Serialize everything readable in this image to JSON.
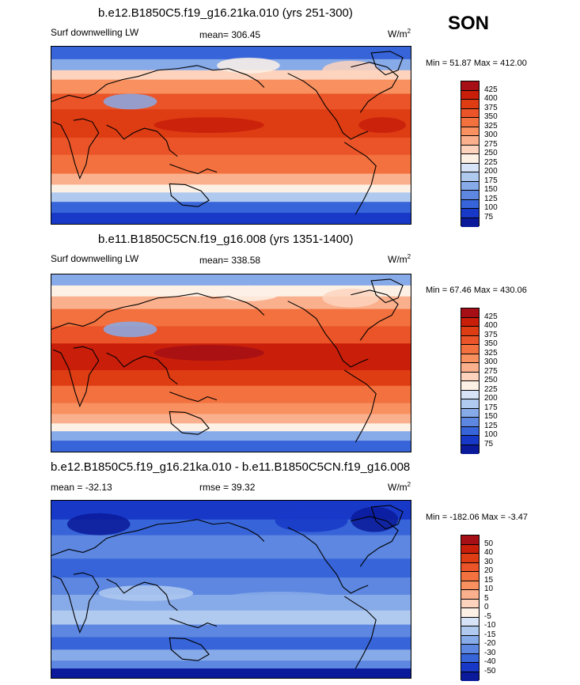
{
  "season": "SON",
  "panels": [
    {
      "title": "b.e12.B1850C5.f19_g16.21ka.010 (yrs 251-300)",
      "left_label": "Surf downwelling LW",
      "mean_label": "mean= 306.45",
      "rmse_label": "",
      "units": "W/m",
      "units_sup": "2",
      "minmax": "Min =  51.87 Max = 412.00",
      "levels": [
        "425",
        "400",
        "375",
        "350",
        "325",
        "300",
        "275",
        "250",
        "225",
        "200",
        "175",
        "150",
        "125",
        "100",
        "75"
      ],
      "colors": [
        "#a50f15",
        "#c81e0a",
        "#de3c13",
        "#ea5428",
        "#f2713f",
        "#f89060",
        "#fbb08d",
        "#fdd3bd",
        "#fdf1e6",
        "#d7e4f7",
        "#afc9ef",
        "#87aae8",
        "#5d87e0",
        "#3764d8",
        "#1838c8",
        "#0a1a9a"
      ],
      "pattern": "control"
    },
    {
      "title": "b.e11.B1850C5CN.f19_g16.008 (yrs 1351-1400)",
      "left_label": "Surf downwelling LW",
      "mean_label": "mean= 338.58",
      "rmse_label": "",
      "units": "W/m",
      "units_sup": "2",
      "minmax": "Min =  67.46 Max = 430.06",
      "levels": [
        "425",
        "400",
        "375",
        "350",
        "325",
        "300",
        "275",
        "250",
        "225",
        "200",
        "175",
        "150",
        "125",
        "100",
        "75"
      ],
      "colors": [
        "#a50f15",
        "#c81e0a",
        "#de3c13",
        "#ea5428",
        "#f2713f",
        "#f89060",
        "#fbb08d",
        "#fdd3bd",
        "#fdf1e6",
        "#d7e4f7",
        "#afc9ef",
        "#87aae8",
        "#5d87e0",
        "#3764d8",
        "#1838c8",
        "#0a1a9a"
      ],
      "pattern": "warm"
    },
    {
      "title": "b.e12.B1850C5.f19_g16.21ka.010 - b.e11.B1850C5CN.f19_g16.008",
      "left_label": "mean = -32.13",
      "mean_label": "rmse =  39.32",
      "rmse_label": "",
      "units": "W/m",
      "units_sup": "2",
      "minmax": "Min = -182.06 Max =  -3.47",
      "levels": [
        "50",
        "40",
        "30",
        "20",
        "15",
        "10",
        "5",
        "0",
        "-5",
        "-10",
        "-15",
        "-20",
        "-30",
        "-40",
        "-50"
      ],
      "colors": [
        "#a50f15",
        "#c81e0a",
        "#de3c13",
        "#ea5428",
        "#f2713f",
        "#f89060",
        "#fbb08d",
        "#fdd3bd",
        "#fdf1e6",
        "#d7e4f7",
        "#afc9ef",
        "#87aae8",
        "#5d87e0",
        "#3764d8",
        "#1838c8",
        "#0a1a9a"
      ],
      "pattern": "diff"
    }
  ]
}
